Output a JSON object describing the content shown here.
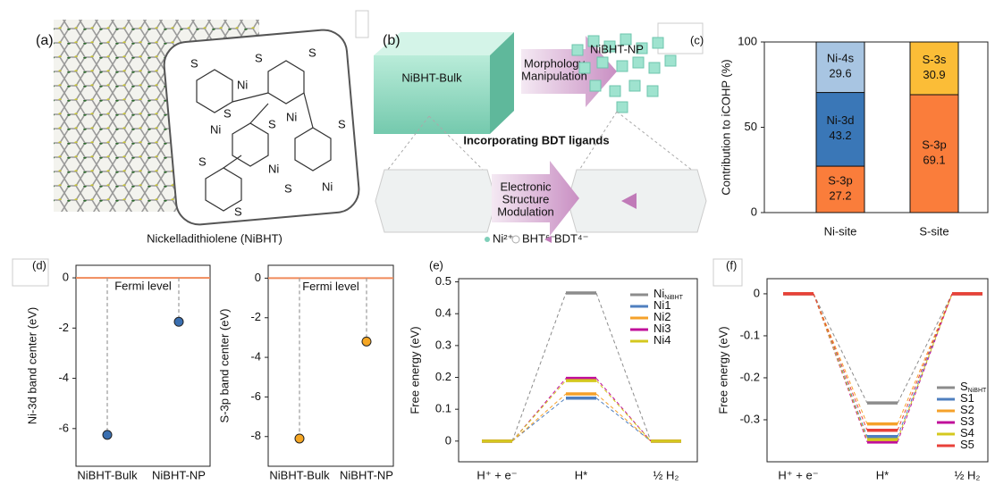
{
  "figure": {
    "panel_a": {
      "label": "(a)",
      "caption": "Nickelladithiolene (NiBHT)",
      "atoms": [
        "Ni",
        "S"
      ]
    },
    "panel_b": {
      "label": "(b)",
      "bulk": "NiBHT-Bulk",
      "arrow_top": [
        "Morphology",
        "Manipulation"
      ],
      "np": "NiBHT-NP",
      "banner": "Incorporating BDT ligands",
      "arrow_bottom": [
        "Electronic",
        "Structure",
        "Modulation"
      ],
      "legend": [
        "Ni²⁺",
        "BHT⁶⁻",
        "BDT⁴⁻"
      ]
    }
  },
  "chart_data": [
    {
      "type": "stacked_bar",
      "label": "(c)",
      "ylabel": "Contribution to iCOHP (%)",
      "categories": [
        "Ni-site",
        "S-site"
      ],
      "series": [
        {
          "name": "S-3p",
          "color": "#fa7d3b",
          "values": [
            27.2,
            69.1
          ]
        },
        {
          "name": "Ni-3d",
          "color": "#3a77b7",
          "values": [
            43.2,
            null
          ]
        },
        {
          "name": "Ni-4s",
          "color": "#a8c5e2",
          "values": [
            29.6,
            null
          ]
        },
        {
          "name": "S-3s",
          "color": "#fbbd37",
          "values": [
            null,
            30.9
          ]
        }
      ],
      "ylim": [
        0,
        100
      ],
      "yticks": [
        0,
        50,
        100
      ]
    },
    {
      "type": "band_center",
      "label": "(d)",
      "ylabel": "Ni-3d band center (eV)",
      "reference_label": "Fermi level",
      "reference_value": 0,
      "reference_color": "#f08a5a",
      "categories": [
        "NiBHT-Bulk",
        "NiBHT-NP"
      ],
      "values": [
        -6.25,
        -1.75
      ],
      "color": "#3a6fb0",
      "ylim": [
        -7.5,
        0.5
      ],
      "yticks": [
        0,
        -2,
        -4,
        -6
      ]
    },
    {
      "type": "band_center",
      "ylabel": "S-3p band center (eV)",
      "reference_label": "Fermi level",
      "reference_value": 0,
      "reference_color": "#f08a5a",
      "categories": [
        "NiBHT-Bulk",
        "NiBHT-NP"
      ],
      "values": [
        -8.1,
        -3.2
      ],
      "color": "#f5a623",
      "ylim": [
        -9.5,
        0.65
      ],
      "yticks": [
        0,
        -2,
        -4,
        -6,
        -8
      ]
    },
    {
      "type": "energy_diagram",
      "label": "(e)",
      "ylabel": "Free energy (eV)",
      "categories": [
        "H⁺ + e⁻",
        "H*",
        "½ H₂"
      ],
      "series": [
        {
          "name": "Ni",
          "name_sub": "NiBHT",
          "color": "#8c8c8c",
          "values": [
            0,
            0.465,
            0
          ]
        },
        {
          "name": "Ni1",
          "color": "#4f7fbf",
          "values": [
            0,
            0.135,
            0
          ]
        },
        {
          "name": "Ni2",
          "color": "#f5a12a",
          "values": [
            0,
            0.148,
            0
          ]
        },
        {
          "name": "Ni3",
          "color": "#c0109a",
          "values": [
            0,
            0.197,
            0
          ]
        },
        {
          "name": "Ni4",
          "color": "#d4c81e",
          "values": [
            0,
            0.19,
            0
          ]
        }
      ],
      "ylim": [
        -0.065,
        0.51
      ],
      "yticks": [
        0,
        0.1,
        0.2,
        0.3,
        0.4,
        0.5
      ]
    },
    {
      "type": "energy_diagram",
      "label": "(f)",
      "ylabel": "Free energy (eV)",
      "categories": [
        "H⁺ + e⁻",
        "H*",
        "½ H₂"
      ],
      "series": [
        {
          "name": "S",
          "name_sub": "NiBHT",
          "color": "#8c8c8c",
          "values": [
            0,
            -0.26,
            0
          ]
        },
        {
          "name": "S1",
          "color": "#4f7fbf",
          "values": [
            0,
            -0.34,
            0
          ]
        },
        {
          "name": "S2",
          "color": "#f5a12a",
          "values": [
            0,
            -0.31,
            0
          ]
        },
        {
          "name": "S3",
          "color": "#c0109a",
          "values": [
            0,
            -0.353,
            0
          ]
        },
        {
          "name": "S4",
          "color": "#d4c81e",
          "values": [
            0,
            -0.347,
            0
          ]
        },
        {
          "name": "S5",
          "color": "#e8403a",
          "values": [
            0,
            -0.325,
            0
          ]
        }
      ],
      "ylim": [
        -0.4,
        0.036
      ],
      "yticks": [
        0,
        -0.1,
        -0.2,
        -0.3
      ]
    }
  ]
}
